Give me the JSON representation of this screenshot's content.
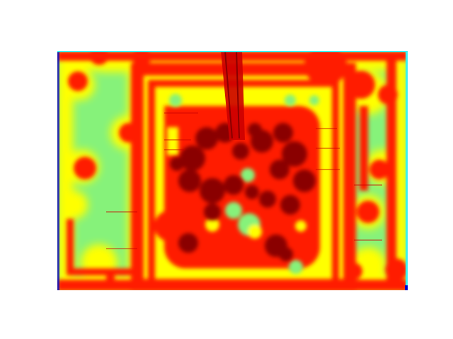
{
  "image": {
    "kind": "heatmap-overlay",
    "colormap": "jet",
    "colors": {
      "background": "#ffffff",
      "cold": "#0000c8",
      "cyan": "#3cf0f0",
      "low": "#86f27a",
      "mid": "#ffff00",
      "high": "#ff1a00",
      "peak": "#8a0000"
    }
  }
}
